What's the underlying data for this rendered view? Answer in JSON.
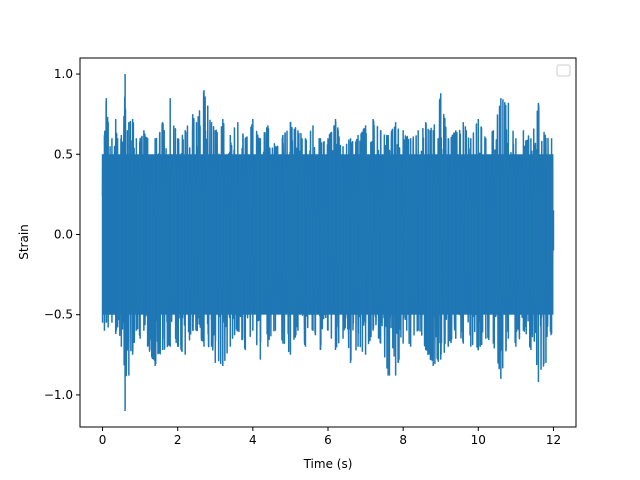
{
  "chart_data": {
    "type": "line",
    "title": "",
    "xlabel": "Time (s)",
    "ylabel": "Strain",
    "xlim": [
      -0.6,
      12.6
    ],
    "ylim": [
      -1.2,
      1.1
    ],
    "xticks": [
      0,
      2,
      4,
      6,
      8,
      10,
      12
    ],
    "xtick_labels": [
      "0",
      "2",
      "4",
      "6",
      "8",
      "10",
      "12"
    ],
    "yticks": [
      -1.0,
      -0.5,
      0.0,
      0.5,
      1.0
    ],
    "ytick_labels": [
      "−1.0",
      "−0.5",
      "0.0",
      "0.5",
      "1.0"
    ],
    "grid": false,
    "legend": {
      "location": "upper right",
      "entries": []
    },
    "series": [
      {
        "color": "#1f77b4",
        "x_start": 0.0,
        "x_end": 12.0,
        "dense_band": {
          "typical_min": -0.5,
          "typical_max": 0.5
        },
        "x": [
          0.0,
          0.05,
          0.1,
          0.15,
          0.2,
          0.25,
          0.3,
          0.35,
          0.4,
          0.5,
          0.55,
          0.6,
          0.66,
          0.7,
          0.8,
          0.9,
          1.0,
          1.1,
          1.2,
          1.4,
          1.6,
          1.8,
          2.0,
          2.2,
          2.4,
          2.5,
          2.7,
          2.9,
          3.0,
          3.2,
          3.4,
          3.6,
          3.8,
          4.0,
          4.2,
          4.4,
          4.6,
          4.8,
          5.0,
          5.2,
          5.4,
          5.6,
          5.8,
          6.0,
          6.2,
          6.4,
          6.6,
          6.8,
          7.0,
          7.2,
          7.4,
          7.6,
          7.8,
          8.0,
          8.2,
          8.4,
          8.6,
          8.8,
          9.0,
          9.2,
          9.4,
          9.6,
          9.8,
          10.0,
          10.2,
          10.4,
          10.6,
          10.8,
          11.0,
          11.2,
          11.4,
          11.6,
          11.8,
          11.95,
          12.0
        ],
        "y_max": [
          0.5,
          0.62,
          0.85,
          0.7,
          0.55,
          0.6,
          0.5,
          0.72,
          0.6,
          0.62,
          0.58,
          1.0,
          0.65,
          0.7,
          0.72,
          0.6,
          0.6,
          0.65,
          0.6,
          0.6,
          0.7,
          0.85,
          0.6,
          0.65,
          0.75,
          0.7,
          0.9,
          0.7,
          0.65,
          0.72,
          0.62,
          0.7,
          0.6,
          0.72,
          0.6,
          0.68,
          0.55,
          0.62,
          0.7,
          0.65,
          0.6,
          0.68,
          0.6,
          0.6,
          0.72,
          0.55,
          0.6,
          0.62,
          0.68,
          0.72,
          0.65,
          0.62,
          0.7,
          0.65,
          0.6,
          0.65,
          0.7,
          0.65,
          0.88,
          0.6,
          0.65,
          0.7,
          0.6,
          0.72,
          0.6,
          0.65,
          0.85,
          0.82,
          0.6,
          0.65,
          0.6,
          0.82,
          0.6,
          0.6,
          0.15
        ],
        "y_min": [
          -0.55,
          -0.6,
          -0.55,
          -0.58,
          -0.5,
          -0.55,
          -0.5,
          -0.62,
          -0.58,
          -0.7,
          -0.55,
          -1.1,
          -0.7,
          -0.88,
          -0.75,
          -0.6,
          -0.65,
          -0.6,
          -0.7,
          -0.82,
          -0.72,
          -0.7,
          -0.7,
          -0.75,
          -0.6,
          -0.6,
          -0.7,
          -0.7,
          -0.8,
          -0.82,
          -0.7,
          -0.6,
          -0.72,
          -0.6,
          -0.78,
          -0.7,
          -0.6,
          -0.68,
          -0.75,
          -0.6,
          -0.7,
          -0.6,
          -0.72,
          -0.6,
          -0.72,
          -0.65,
          -0.8,
          -0.7,
          -0.75,
          -0.6,
          -0.68,
          -0.88,
          -0.88,
          -0.68,
          -0.7,
          -0.6,
          -0.72,
          -0.82,
          -0.78,
          -0.7,
          -0.65,
          -0.68,
          -0.7,
          -0.72,
          -0.65,
          -0.68,
          -0.9,
          -0.65,
          -0.7,
          -0.6,
          -0.72,
          -0.92,
          -0.8,
          -0.62,
          -0.1
        ]
      }
    ]
  }
}
